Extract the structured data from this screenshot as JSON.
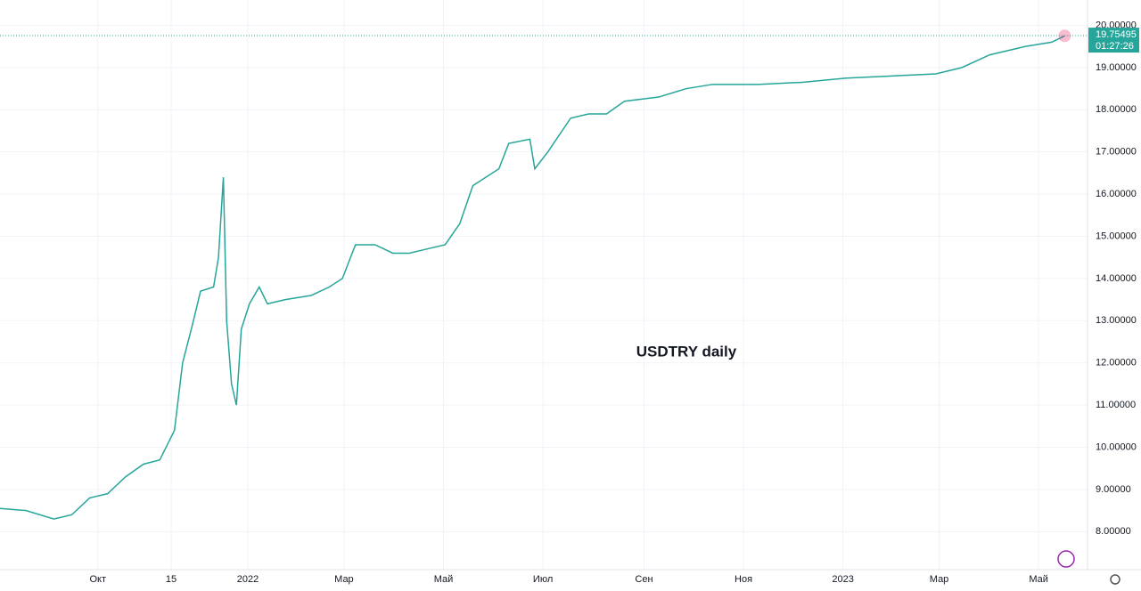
{
  "chart_data": {
    "type": "line",
    "annotation": "USDTRY daily",
    "x": [
      -152,
      -136,
      -119,
      -108,
      -97,
      -86,
      -75,
      -64,
      -54,
      -45,
      -40,
      -34,
      -29,
      -21,
      -18,
      -15,
      -13,
      -10,
      -7,
      -4,
      1,
      7,
      12,
      23,
      39,
      50,
      58,
      66,
      78,
      89,
      99,
      110,
      121,
      130,
      138,
      146,
      154,
      160,
      173,
      176,
      184,
      198,
      209,
      220,
      231,
      252,
      269,
      285,
      302,
      313,
      340,
      367,
      395,
      422,
      438,
      455,
      477,
      493,
      501
    ],
    "series": [
      {
        "name": "USDTRY",
        "color": "#26a69a",
        "values": [
          8.55,
          8.5,
          8.3,
          8.4,
          8.8,
          8.9,
          9.3,
          9.6,
          9.7,
          10.4,
          12.0,
          12.9,
          13.7,
          13.8,
          14.5,
          16.4,
          13.0,
          11.5,
          11.0,
          12.8,
          13.4,
          13.8,
          13.4,
          13.5,
          13.6,
          13.8,
          14.0,
          14.8,
          14.8,
          14.6,
          14.6,
          14.7,
          14.8,
          15.3,
          16.2,
          16.4,
          16.6,
          17.2,
          17.3,
          16.6,
          17.0,
          17.8,
          17.9,
          17.9,
          18.2,
          18.3,
          18.5,
          18.6,
          18.6,
          18.6,
          18.65,
          18.75,
          18.8,
          18.85,
          19.0,
          19.3,
          19.5,
          19.6,
          19.75
        ]
      }
    ],
    "last_price": 19.75495,
    "countdown": "01:27:26",
    "xlim": [
      -152,
      515
    ],
    "xticks": [
      {
        "value": -92,
        "label": "Окт"
      },
      {
        "value": -47,
        "label": "15"
      },
      {
        "value": 0,
        "label": "2022"
      },
      {
        "value": 59,
        "label": "Мар"
      },
      {
        "value": 120,
        "label": "Май"
      },
      {
        "value": 181,
        "label": "Июл"
      },
      {
        "value": 243,
        "label": "Сен"
      },
      {
        "value": 304,
        "label": "Ноя"
      },
      {
        "value": 365,
        "label": "2023"
      },
      {
        "value": 424,
        "label": "Мар"
      },
      {
        "value": 485,
        "label": "Май"
      }
    ],
    "ylim": [
      7.1,
      20.6
    ],
    "yticks": [
      {
        "value": 8,
        "label": "8.00000"
      },
      {
        "value": 9,
        "label": "9.00000"
      },
      {
        "value": 10,
        "label": "10.00000"
      },
      {
        "value": 11,
        "label": "11.00000"
      },
      {
        "value": 12,
        "label": "12.00000"
      },
      {
        "value": 13,
        "label": "13.00000"
      },
      {
        "value": 14,
        "label": "14.00000"
      },
      {
        "value": 15,
        "label": "15.00000"
      },
      {
        "value": 16,
        "label": "16.00000"
      },
      {
        "value": 17,
        "label": "17.00000"
      },
      {
        "value": 18,
        "label": "18.00000"
      },
      {
        "value": 19,
        "label": "19.00000"
      },
      {
        "value": 20,
        "label": "20.00000"
      }
    ],
    "grid": true
  }
}
